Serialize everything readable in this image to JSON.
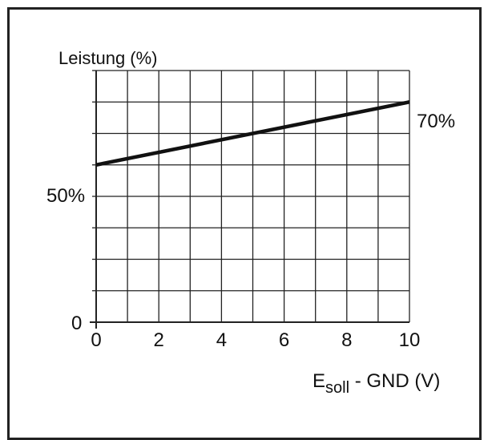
{
  "chart_data": {
    "type": "line",
    "ylabel": "Leistung (%)",
    "xlabel_main": "E",
    "xlabel_sub": "soll",
    "xlabel_rest": " - GND (V)",
    "xlim": [
      0,
      10
    ],
    "ylim": [
      0,
      80
    ],
    "x_ticks": [
      0,
      2,
      4,
      6,
      8,
      10
    ],
    "x_tick_labels": [
      "0",
      "2",
      "4",
      "6",
      "8",
      "10"
    ],
    "y_tick_label_zero": "0",
    "series": [
      {
        "x": [
          0,
          10
        ],
        "y": [
          50,
          70
        ]
      }
    ],
    "annotations": {
      "start_label": "50%",
      "end_label": "70%"
    },
    "grid": true,
    "colors": {
      "line": "#111111",
      "grid": "#222222",
      "frame": "#222222"
    }
  }
}
